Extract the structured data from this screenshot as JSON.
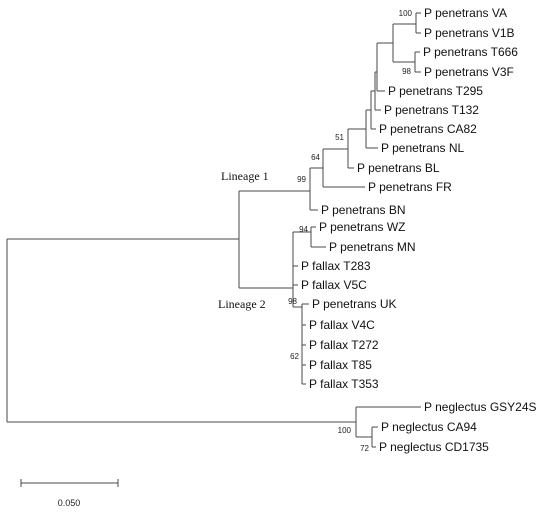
{
  "taxa": {
    "va": "P penetrans VA",
    "v1b": "P penetrans V1B",
    "t666": "P penetrans T666",
    "v3f": "P penetrans V3F",
    "t295": "P penetrans T295",
    "t132": "P penetrans T132",
    "ca82": "P penetrans CA82",
    "nl": "P penetrans NL",
    "bl": "P penetrans BL",
    "fr": "P penetrans FR",
    "bn": "P penetrans BN",
    "wz": "P penetrans WZ",
    "mn": "P penetrans MN",
    "t283": "P fallax T283",
    "v5c": "P fallax V5C",
    "uk": "P penetrans UK",
    "v4c": "P fallax V4C",
    "t272": "P fallax T272",
    "t85": "P fallax T85",
    "t353": "P fallax T353",
    "gsy24s": "P neglectus GSY24S",
    "ca94": "P neglectus CA94",
    "cd1735": "P neglectus CD1735"
  },
  "bootstrap": {
    "va_v1b": "100",
    "t666_v3f": "98",
    "node51": "51",
    "node64": "64",
    "lineage1": "99",
    "wz_mn": "94",
    "lineage2": "98",
    "node62": "62",
    "neglectus": "100",
    "ca94_cd1735": "72"
  },
  "clades": {
    "lineage1": "Lineage 1",
    "lineage2": "Lineage 2"
  },
  "scale_bar": {
    "label": "0.050",
    "value": 0.05
  }
}
